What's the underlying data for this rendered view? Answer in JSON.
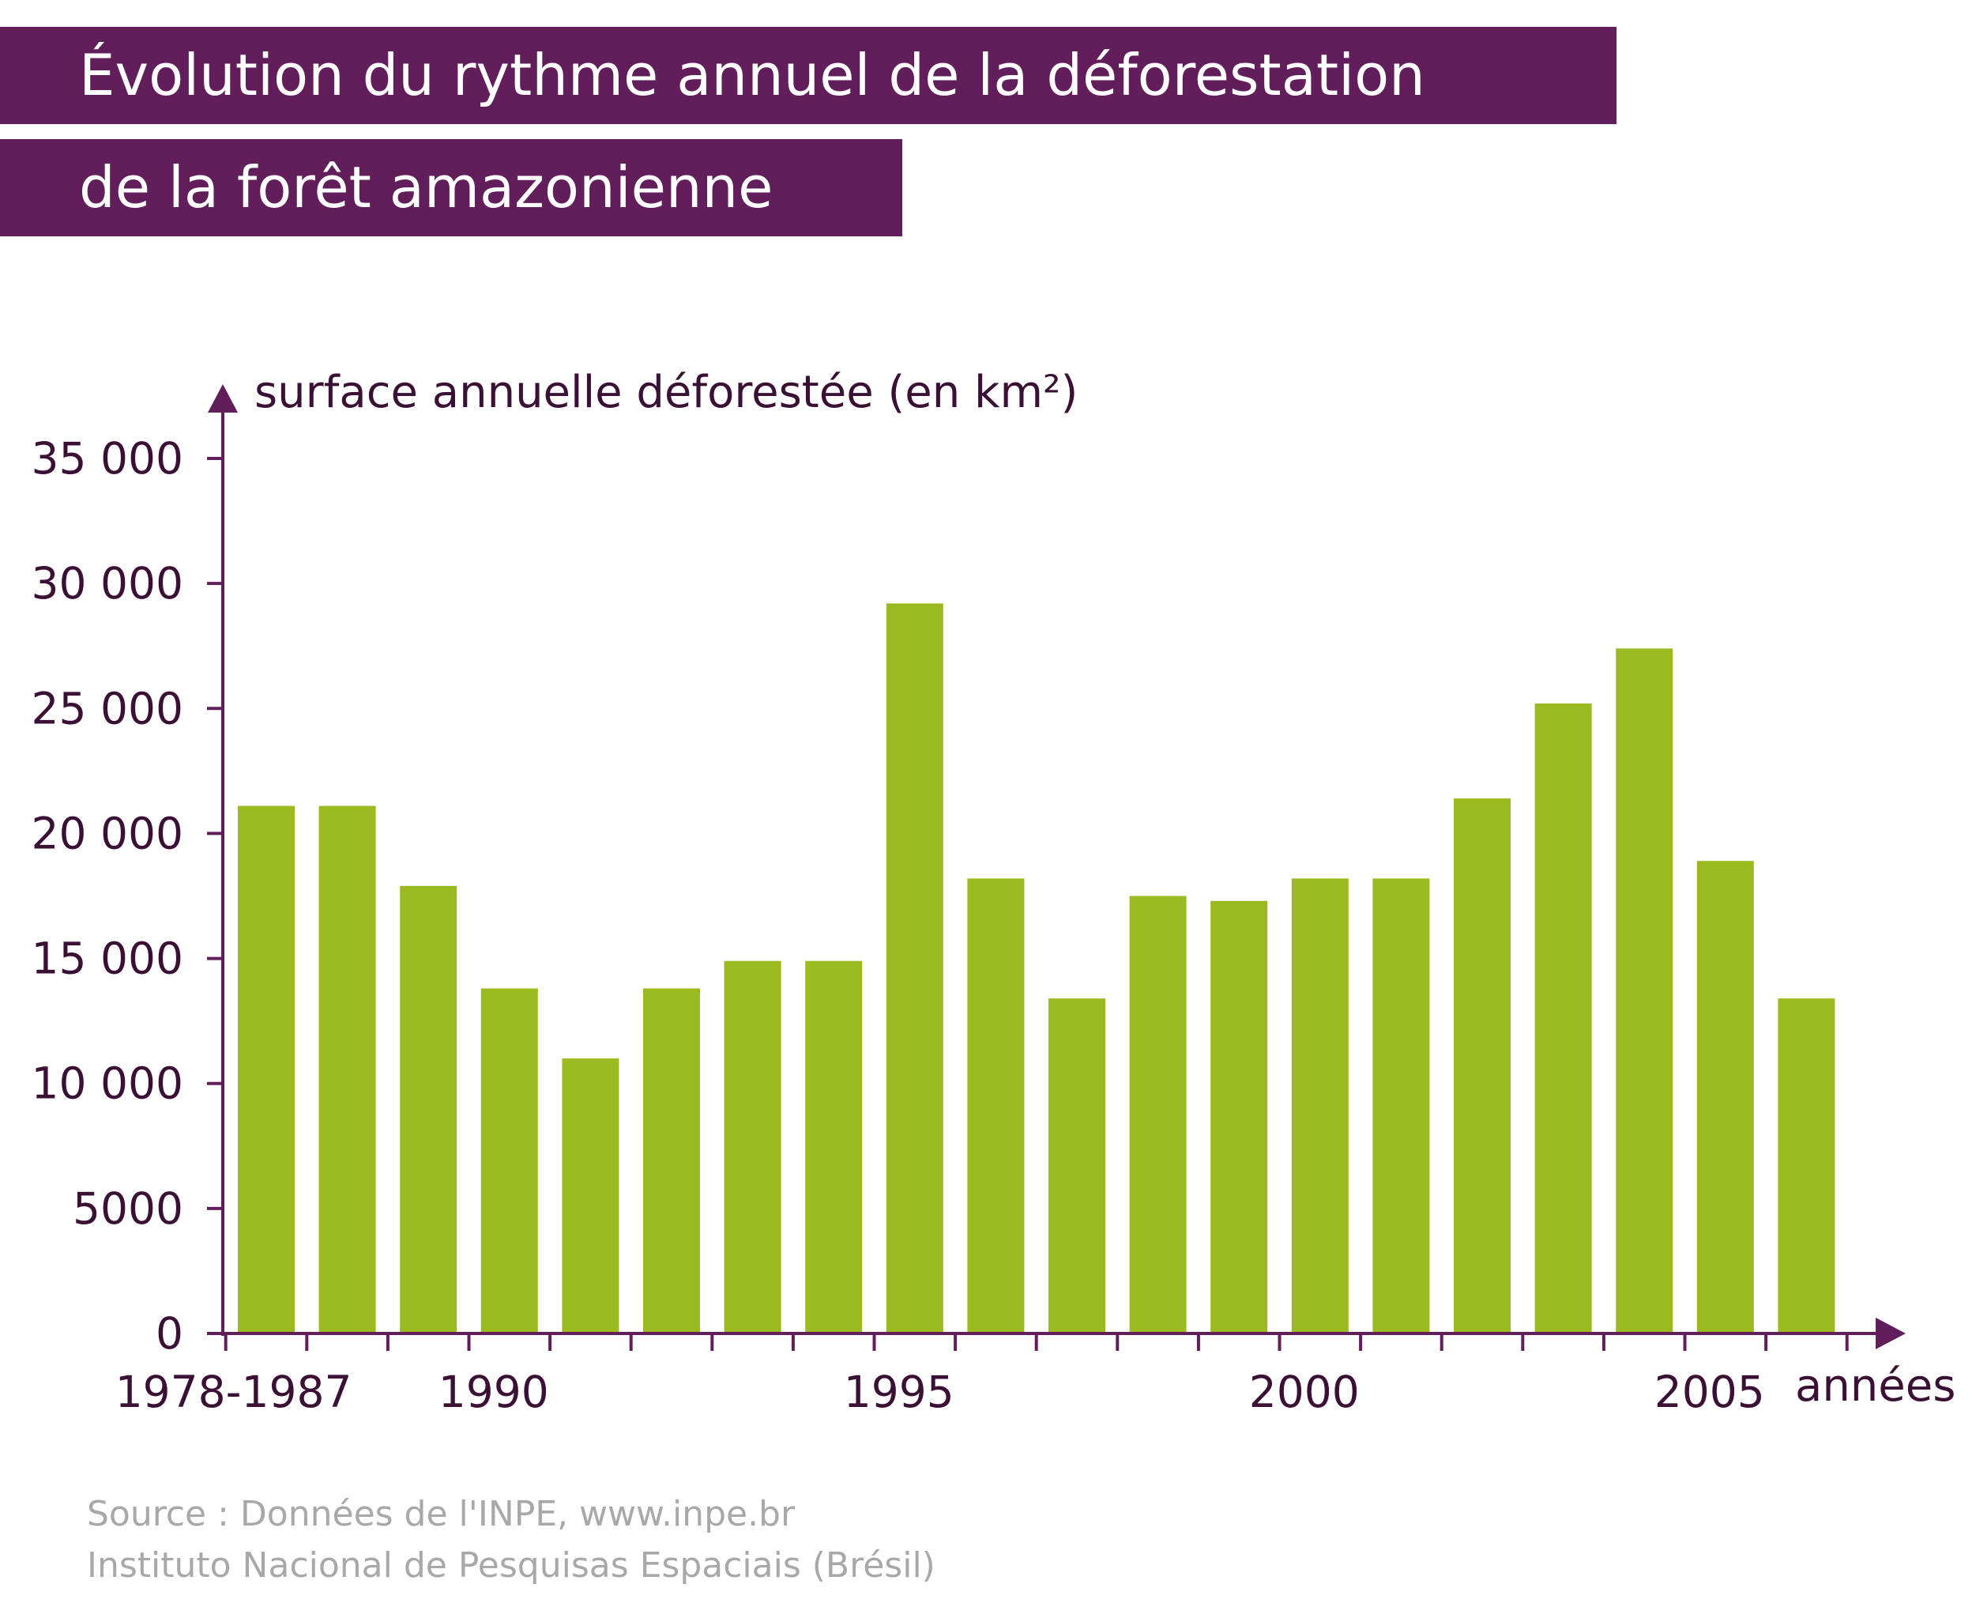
{
  "title": {
    "line1": "Évolution du rythme annuel de la déforestation",
    "line2": "de la forêt amazonienne"
  },
  "colors": {
    "band": "#611e5a",
    "axis": "#611e5a",
    "bar": "#9aba20",
    "text": "#3a1035",
    "source": "#a8a8a8"
  },
  "chart_data": {
    "type": "bar",
    "ylabel": "surface annuelle déforestée (en km²)",
    "xlabel": "années",
    "ylim": [
      0,
      35000
    ],
    "yticks": [
      {
        "value": 0,
        "label": "0"
      },
      {
        "value": 5000,
        "label": "5000"
      },
      {
        "value": 10000,
        "label": "10 000"
      },
      {
        "value": 15000,
        "label": "15 000"
      },
      {
        "value": 20000,
        "label": "20 000"
      },
      {
        "value": 25000,
        "label": "25 000"
      },
      {
        "value": 30000,
        "label": "30 000"
      },
      {
        "value": 35000,
        "label": "35 000"
      }
    ],
    "xlabels": [
      {
        "label": "1978-1987",
        "position": 0
      },
      {
        "label": "1990",
        "position": 3
      },
      {
        "label": "1995",
        "position": 8
      },
      {
        "label": "2000",
        "position": 13
      },
      {
        "label": "2005",
        "position": 18
      }
    ],
    "values": [
      21100,
      21100,
      17900,
      13800,
      11000,
      13800,
      14900,
      14900,
      29200,
      18200,
      13400,
      17500,
      17300,
      18200,
      18200,
      21400,
      25200,
      27400,
      18900,
      13400
    ],
    "grid": false,
    "legend": "none"
  },
  "source": {
    "line1": "Source : Données de l'INPE, www.inpe.br",
    "line2": "Instituto Nacional de Pesquisas Espaciais (Brésil)"
  }
}
